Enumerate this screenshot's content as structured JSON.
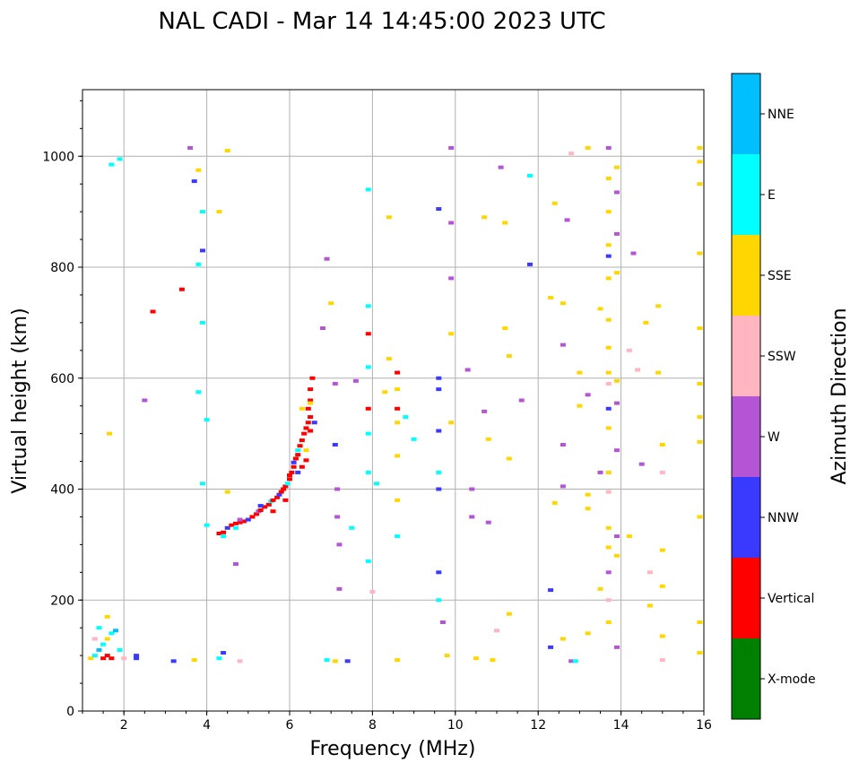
{
  "chart_data": {
    "type": "scatter",
    "title": "NAL CADI - Mar 14 14:45:00 2023 UTC",
    "xlabel": "Frequency (MHz)",
    "ylabel": "Virtual height (km)",
    "xlim": [
      1,
      16
    ],
    "ylim": [
      0,
      1120
    ],
    "xticks": [
      2,
      4,
      6,
      8,
      10,
      12,
      14,
      16
    ],
    "yticks": [
      0,
      200,
      400,
      600,
      800,
      1000
    ],
    "grid": true,
    "colorbar": {
      "label": "Azimuth Direction",
      "categories": [
        "X-mode",
        "Vertical",
        "NNW",
        "W",
        "SSW",
        "SSE",
        "E",
        "NNE"
      ],
      "colors": [
        "#008000",
        "#ff0000",
        "#3a3aff",
        "#b455d6",
        "#ffb6c1",
        "#ffd700",
        "#00ffff",
        "#00bfff"
      ]
    },
    "point_format": "[frequency_MHz, virtual_height_km, azimuth_category_index]",
    "points": [
      [
        4.3,
        320,
        1
      ],
      [
        4.4,
        322,
        1
      ],
      [
        4.5,
        330,
        2
      ],
      [
        4.6,
        335,
        1
      ],
      [
        4.7,
        338,
        1
      ],
      [
        4.8,
        340,
        1
      ],
      [
        4.9,
        342,
        1
      ],
      [
        5.0,
        345,
        2
      ],
      [
        5.1,
        350,
        1
      ],
      [
        5.2,
        355,
        1
      ],
      [
        5.25,
        360,
        3
      ],
      [
        5.3,
        362,
        1
      ],
      [
        5.4,
        368,
        1
      ],
      [
        5.5,
        372,
        1
      ],
      [
        5.55,
        378,
        6
      ],
      [
        5.6,
        380,
        1
      ],
      [
        5.7,
        385,
        1
      ],
      [
        5.75,
        390,
        2
      ],
      [
        5.8,
        395,
        1
      ],
      [
        5.85,
        400,
        1
      ],
      [
        5.9,
        405,
        1
      ],
      [
        5.95,
        410,
        6
      ],
      [
        6.0,
        418,
        1
      ],
      [
        6.0,
        425,
        1
      ],
      [
        6.05,
        430,
        1
      ],
      [
        6.1,
        440,
        1
      ],
      [
        6.1,
        448,
        2
      ],
      [
        6.15,
        455,
        1
      ],
      [
        6.2,
        462,
        1
      ],
      [
        6.2,
        470,
        6
      ],
      [
        6.25,
        478,
        1
      ],
      [
        6.3,
        488,
        1
      ],
      [
        6.35,
        500,
        1
      ],
      [
        6.4,
        510,
        1
      ],
      [
        6.45,
        520,
        1
      ],
      [
        6.5,
        530,
        1
      ],
      [
        6.45,
        545,
        1
      ],
      [
        6.5,
        560,
        1
      ],
      [
        6.5,
        580,
        1
      ],
      [
        6.55,
        600,
        1
      ],
      [
        6.3,
        440,
        1
      ],
      [
        6.4,
        452,
        1
      ],
      [
        6.5,
        505,
        1
      ],
      [
        6.4,
        470,
        5
      ],
      [
        6.5,
        555,
        5
      ],
      [
        6.2,
        430,
        2
      ],
      [
        5.9,
        380,
        1
      ],
      [
        5.6,
        360,
        1
      ],
      [
        4.7,
        330,
        6
      ],
      [
        4.8,
        345,
        3
      ],
      [
        4.4,
        315,
        6
      ],
      [
        5.3,
        370,
        2
      ],
      [
        6.6,
        520,
        2
      ],
      [
        6.3,
        545,
        5
      ],
      [
        1.2,
        95,
        5
      ],
      [
        1.3,
        100,
        6
      ],
      [
        1.4,
        110,
        7
      ],
      [
        1.5,
        95,
        1
      ],
      [
        1.5,
        120,
        6
      ],
      [
        1.6,
        100,
        1
      ],
      [
        1.6,
        130,
        5
      ],
      [
        1.6,
        170,
        5
      ],
      [
        1.7,
        95,
        1
      ],
      [
        1.7,
        140,
        6
      ],
      [
        1.4,
        150,
        6
      ],
      [
        1.3,
        130,
        4
      ],
      [
        1.8,
        145,
        7
      ],
      [
        1.9,
        110,
        6
      ],
      [
        2.0,
        95,
        4
      ],
      [
        2.3,
        95,
        2
      ],
      [
        2.3,
        100,
        2
      ],
      [
        3.2,
        90,
        2
      ],
      [
        3.7,
        92,
        5
      ],
      [
        4.3,
        95,
        6
      ],
      [
        4.4,
        105,
        2
      ],
      [
        4.8,
        90,
        4
      ],
      [
        6.9,
        92,
        6
      ],
      [
        7.1,
        90,
        5
      ],
      [
        7.4,
        90,
        2
      ],
      [
        1.65,
        500,
        5
      ],
      [
        1.9,
        995,
        6
      ],
      [
        1.7,
        985,
        6
      ],
      [
        2.7,
        720,
        1
      ],
      [
        2.5,
        560,
        3
      ],
      [
        3.4,
        760,
        1
      ],
      [
        3.6,
        1015,
        3
      ],
      [
        3.7,
        955,
        2
      ],
      [
        3.8,
        975,
        5
      ],
      [
        3.9,
        900,
        6
      ],
      [
        3.9,
        830,
        2
      ],
      [
        3.8,
        805,
        6
      ],
      [
        3.9,
        700,
        6
      ],
      [
        3.8,
        575,
        6
      ],
      [
        4.0,
        525,
        6
      ],
      [
        3.9,
        410,
        6
      ],
      [
        4.0,
        335,
        6
      ],
      [
        4.5,
        1010,
        5
      ],
      [
        4.3,
        900,
        5
      ],
      [
        4.7,
        265,
        3
      ],
      [
        4.5,
        395,
        5
      ],
      [
        6.8,
        690,
        3
      ],
      [
        6.9,
        815,
        3
      ],
      [
        7.0,
        735,
        5
      ],
      [
        7.1,
        590,
        3
      ],
      [
        7.1,
        480,
        2
      ],
      [
        7.15,
        400,
        3
      ],
      [
        7.15,
        350,
        3
      ],
      [
        7.2,
        300,
        3
      ],
      [
        7.2,
        220,
        3
      ],
      [
        7.5,
        330,
        6
      ],
      [
        7.6,
        595,
        3
      ],
      [
        7.9,
        940,
        6
      ],
      [
        7.9,
        730,
        6
      ],
      [
        7.9,
        680,
        1
      ],
      [
        7.9,
        620,
        6
      ],
      [
        7.9,
        545,
        1
      ],
      [
        7.9,
        500,
        6
      ],
      [
        7.9,
        430,
        6
      ],
      [
        7.9,
        270,
        6
      ],
      [
        8.1,
        410,
        6
      ],
      [
        8.0,
        215,
        4
      ],
      [
        8.3,
        575,
        5
      ],
      [
        8.4,
        635,
        5
      ],
      [
        8.4,
        890,
        5
      ],
      [
        8.6,
        610,
        1
      ],
      [
        8.6,
        580,
        5
      ],
      [
        8.6,
        545,
        1
      ],
      [
        8.6,
        520,
        5
      ],
      [
        8.6,
        460,
        5
      ],
      [
        8.6,
        380,
        5
      ],
      [
        8.6,
        315,
        6
      ],
      [
        8.6,
        92,
        5
      ],
      [
        8.8,
        530,
        6
      ],
      [
        9.0,
        490,
        6
      ],
      [
        9.6,
        905,
        2
      ],
      [
        9.6,
        600,
        2
      ],
      [
        9.6,
        580,
        2
      ],
      [
        9.6,
        505,
        2
      ],
      [
        9.6,
        430,
        6
      ],
      [
        9.6,
        400,
        2
      ],
      [
        9.6,
        250,
        2
      ],
      [
        9.6,
        200,
        6
      ],
      [
        9.7,
        160,
        3
      ],
      [
        9.8,
        100,
        5
      ],
      [
        9.9,
        1015,
        3
      ],
      [
        9.9,
        880,
        3
      ],
      [
        9.9,
        780,
        3
      ],
      [
        9.9,
        680,
        5
      ],
      [
        9.9,
        520,
        5
      ],
      [
        10.3,
        615,
        3
      ],
      [
        10.4,
        400,
        3
      ],
      [
        10.4,
        350,
        3
      ],
      [
        10.5,
        95,
        5
      ],
      [
        10.7,
        890,
        5
      ],
      [
        10.7,
        540,
        3
      ],
      [
        10.8,
        490,
        5
      ],
      [
        10.8,
        340,
        3
      ],
      [
        10.9,
        92,
        5
      ],
      [
        11.0,
        145,
        4
      ],
      [
        11.1,
        980,
        3
      ],
      [
        11.2,
        880,
        5
      ],
      [
        11.2,
        690,
        5
      ],
      [
        11.3,
        640,
        5
      ],
      [
        11.3,
        455,
        5
      ],
      [
        11.3,
        175,
        5
      ],
      [
        11.6,
        560,
        3
      ],
      [
        11.8,
        965,
        6
      ],
      [
        11.8,
        805,
        2
      ],
      [
        12.3,
        745,
        5
      ],
      [
        12.4,
        915,
        5
      ],
      [
        12.4,
        375,
        5
      ],
      [
        12.3,
        218,
        2
      ],
      [
        12.3,
        115,
        2
      ],
      [
        12.6,
        735,
        5
      ],
      [
        12.6,
        660,
        3
      ],
      [
        12.6,
        480,
        3
      ],
      [
        12.6,
        405,
        3
      ],
      [
        12.6,
        130,
        5
      ],
      [
        12.7,
        885,
        3
      ],
      [
        12.8,
        1005,
        4
      ],
      [
        12.8,
        90,
        3
      ],
      [
        12.9,
        90,
        6
      ],
      [
        13.0,
        610,
        5
      ],
      [
        13.0,
        550,
        5
      ],
      [
        13.2,
        1015,
        5
      ],
      [
        13.2,
        570,
        3
      ],
      [
        13.2,
        390,
        5
      ],
      [
        13.2,
        365,
        5
      ],
      [
        13.2,
        140,
        5
      ],
      [
        13.5,
        725,
        5
      ],
      [
        13.5,
        430,
        3
      ],
      [
        13.5,
        220,
        5
      ],
      [
        13.7,
        1015,
        3
      ],
      [
        13.7,
        960,
        5
      ],
      [
        13.7,
        900,
        5
      ],
      [
        13.7,
        840,
        5
      ],
      [
        13.7,
        820,
        2
      ],
      [
        13.7,
        780,
        5
      ],
      [
        13.7,
        705,
        5
      ],
      [
        13.7,
        655,
        5
      ],
      [
        13.7,
        610,
        5
      ],
      [
        13.7,
        590,
        4
      ],
      [
        13.7,
        545,
        2
      ],
      [
        13.7,
        510,
        5
      ],
      [
        13.7,
        430,
        5
      ],
      [
        13.7,
        395,
        4
      ],
      [
        13.7,
        330,
        5
      ],
      [
        13.7,
        295,
        5
      ],
      [
        13.7,
        250,
        3
      ],
      [
        13.7,
        200,
        4
      ],
      [
        13.7,
        160,
        5
      ],
      [
        13.9,
        980,
        5
      ],
      [
        13.9,
        935,
        3
      ],
      [
        13.9,
        860,
        3
      ],
      [
        13.9,
        790,
        5
      ],
      [
        13.9,
        595,
        5
      ],
      [
        13.9,
        555,
        3
      ],
      [
        13.9,
        470,
        3
      ],
      [
        13.9,
        315,
        3
      ],
      [
        13.9,
        280,
        5
      ],
      [
        13.9,
        115,
        3
      ],
      [
        14.2,
        650,
        4
      ],
      [
        14.2,
        315,
        5
      ],
      [
        14.3,
        825,
        3
      ],
      [
        14.4,
        615,
        4
      ],
      [
        14.5,
        445,
        3
      ],
      [
        14.6,
        700,
        5
      ],
      [
        14.7,
        250,
        4
      ],
      [
        14.7,
        190,
        5
      ],
      [
        14.9,
        730,
        5
      ],
      [
        14.9,
        610,
        5
      ],
      [
        15.0,
        480,
        5
      ],
      [
        15.0,
        430,
        4
      ],
      [
        15.0,
        290,
        5
      ],
      [
        15.0,
        225,
        5
      ],
      [
        15.0,
        135,
        5
      ],
      [
        15.0,
        92,
        4
      ],
      [
        15.9,
        1015,
        5
      ],
      [
        15.9,
        990,
        5
      ],
      [
        15.9,
        950,
        5
      ],
      [
        15.9,
        825,
        5
      ],
      [
        15.9,
        690,
        5
      ],
      [
        15.9,
        590,
        5
      ],
      [
        15.9,
        530,
        5
      ],
      [
        15.9,
        485,
        5
      ],
      [
        15.9,
        350,
        5
      ],
      [
        15.9,
        160,
        5
      ],
      [
        15.9,
        105,
        5
      ]
    ]
  }
}
